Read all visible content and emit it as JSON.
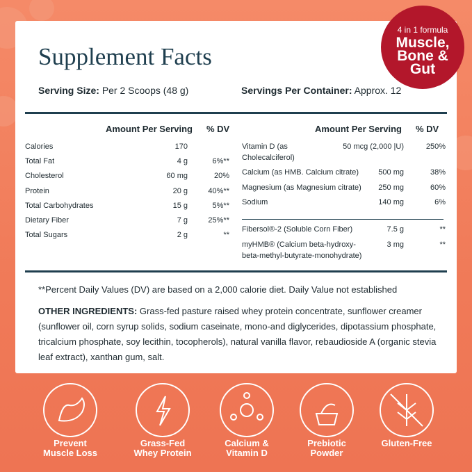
{
  "header": {
    "title": "Supplement Facts",
    "serving_size_label": "Serving Size:",
    "serving_size": "Per 2 Scoops (48 g)",
    "servings_label": "Servings Per Container:",
    "servings": "Approx. 12"
  },
  "badge": {
    "top": "4 in 1 formula",
    "lines": [
      "Muscle,",
      "Bone &",
      "Gut"
    ]
  },
  "columns": {
    "amount": "Amount Per Serving",
    "dv": "% DV"
  },
  "left_rows": [
    [
      "Calories",
      "170",
      ""
    ],
    [
      "Total Fat",
      "4 g",
      "6%**"
    ],
    [
      "Cholesterol",
      "60 mg",
      "20%"
    ],
    [
      "Protein",
      "20 g",
      "40%**"
    ],
    [
      "Total Carbohydrates",
      "15 g",
      "5%**"
    ],
    [
      "Dietary Fiber",
      "7 g",
      "25%**"
    ],
    [
      "Total Sugars",
      "2 g",
      "**"
    ]
  ],
  "right_rows": [
    [
      [
        "Vitamin D (as",
        "Cholecalciferol)"
      ],
      "50 mcg (2,000 |U)",
      "250%"
    ],
    [
      [
        "Calcium (as HMB. Calcium citrate)"
      ],
      "500 mg",
      "38%"
    ],
    [
      [
        "Magnesium (as Magnesium citrate)"
      ],
      "250 mg",
      "60%"
    ],
    [
      [
        "Sodium"
      ],
      "140 mg",
      "6%"
    ],
    [
      [
        "Fibersol®-2 (Soluble Corn Fiber)"
      ],
      "7.5 g",
      "**"
    ],
    [
      [
        "myHMB® (Calcium beta-hydroxy-",
        "beta-methyl-butyrate-monohydrate)"
      ],
      "3 mg",
      "**"
    ]
  ],
  "footnote": "**Percent Daily Values (DV) are based on a 2,000 calorie diet. Daily Value not established",
  "ingredients": {
    "label": "OTHER INGREDIENTS:",
    "lines": [
      " Grass-fed pasture raised whey protein concentrate, sunflower creamer",
      "(sunflower oil, corn syrup solids, sodium caseinate, mono-and diglycerides, dipotassium phosphate,",
      "tricalcium phosphate, soy lecithin, tocopherols), natural vanilla flavor, rebaudioside A (organic stevia",
      "leaf extract), xanthan gum, salt."
    ]
  },
  "features": [
    [
      "Prevent",
      "Muscle Loss"
    ],
    [
      "Grass-Fed",
      "Whey Protein"
    ],
    [
      "Calcium &",
      "Vitamin D"
    ],
    [
      "Prebiotic",
      "Powder"
    ],
    [
      "Gluten-Free"
    ]
  ]
}
